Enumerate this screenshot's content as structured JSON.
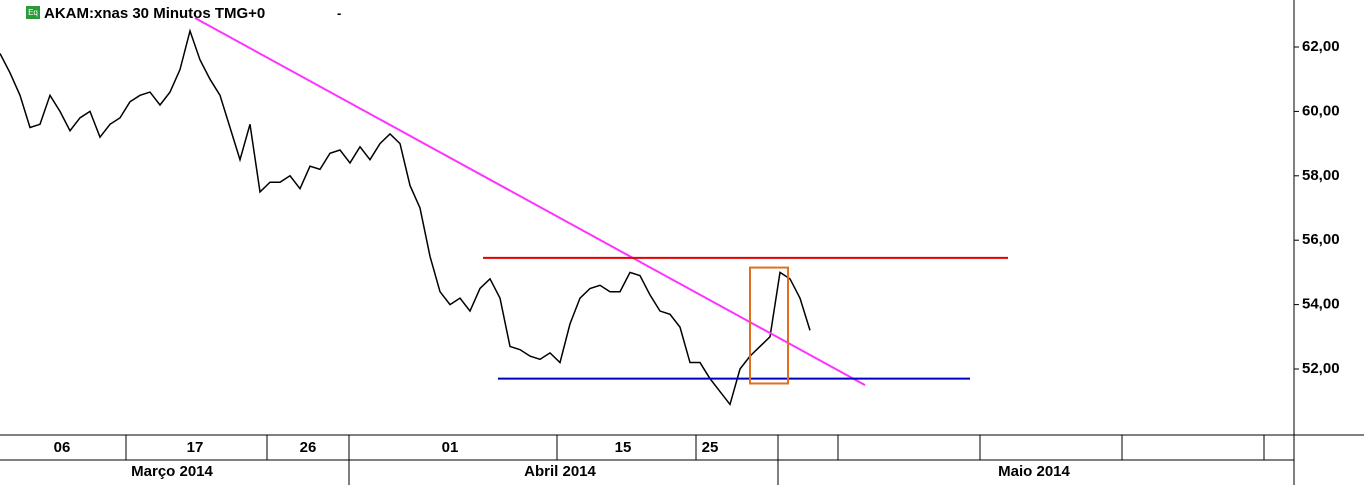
{
  "chart_data": {
    "type": "line",
    "title": "AKAM:xnas 30 Minutos TMG+0",
    "menu": "-",
    "icon": "Eq",
    "x": [
      0,
      1,
      2,
      3,
      4,
      5,
      6,
      7,
      8,
      9,
      10,
      11,
      12,
      13,
      14,
      15,
      16,
      17,
      18,
      19,
      20,
      21,
      22,
      23,
      24,
      25,
      26,
      27,
      28,
      29,
      30,
      31,
      32,
      33,
      34,
      35,
      36,
      37,
      38,
      39,
      40,
      41,
      42,
      43,
      44,
      45,
      46,
      47,
      48,
      49,
      50,
      51,
      52,
      53,
      54,
      55,
      56,
      57,
      58,
      59,
      60,
      61,
      62,
      63,
      64,
      65,
      66,
      67,
      68,
      69,
      70,
      71,
      72,
      73,
      74,
      75,
      76,
      77,
      78,
      79,
      80,
      81
    ],
    "series": [
      {
        "color": "#000000",
        "values": [
          61.8,
          61.2,
          60.5,
          59.5,
          59.6,
          60.5,
          60.0,
          59.4,
          59.8,
          60.0,
          59.2,
          59.6,
          59.8,
          60.3,
          60.5,
          60.6,
          60.2,
          60.6,
          61.3,
          62.5,
          61.6,
          61.0,
          60.5,
          59.5,
          58.5,
          59.6,
          57.5,
          57.8,
          57.8,
          58.0,
          57.6,
          58.3,
          58.2,
          58.7,
          58.8,
          58.4,
          58.9,
          58.5,
          59.0,
          59.3,
          59.0,
          57.7,
          57.0,
          55.5,
          54.4,
          54.0,
          54.2,
          53.8,
          54.5,
          54.8,
          54.2,
          52.7,
          52.6,
          52.4,
          52.3,
          52.5,
          52.2,
          53.4,
          54.2,
          54.5,
          54.6,
          54.4,
          54.4,
          55.0,
          54.9,
          54.3,
          53.8,
          53.7,
          53.3,
          52.2,
          52.2,
          51.7,
          51.3,
          50.9,
          52.0,
          52.4,
          52.7,
          53.0,
          55.0,
          54.8,
          54.2,
          53.2
        ]
      }
    ],
    "xlim": [
      0,
      129.4
    ],
    "ylim": [
      49.95,
      63.46
    ],
    "yticks": [
      {
        "value": 52,
        "label": "52,00"
      },
      {
        "value": 54,
        "label": "54,00"
      },
      {
        "value": 56,
        "label": "56,00"
      },
      {
        "value": 58,
        "label": "58,00"
      },
      {
        "value": 60,
        "label": "60,00"
      },
      {
        "value": 62,
        "label": "62,00"
      }
    ],
    "xticks": [
      {
        "value": 6.2,
        "label": "06"
      },
      {
        "value": 19.5,
        "label": "17"
      },
      {
        "value": 30.8,
        "label": "26"
      },
      {
        "value": 45,
        "label": "01"
      },
      {
        "value": 62.3,
        "label": "15"
      },
      {
        "value": 71,
        "label": "25"
      }
    ],
    "months": [
      "Março 2014",
      "Abril 2014",
      "Maio 2014"
    ],
    "lines": [
      {
        "color": "#ff33ff",
        "x1": 19.5,
        "y1": 62.9,
        "x2": 86.5,
        "y2": 51.5
      },
      {
        "color": "#e00000",
        "x1": 48.3,
        "y1": 55.45,
        "x2": 100.8,
        "y2": 55.45
      },
      {
        "color": "#0000c0",
        "x1": 49.8,
        "y1": 51.7,
        "x2": 97,
        "y2": 51.7
      }
    ],
    "box": {
      "color": "#e07020",
      "x1": 75,
      "x2": 78.8,
      "y1": 51.55,
      "y2": 55.15
    }
  }
}
